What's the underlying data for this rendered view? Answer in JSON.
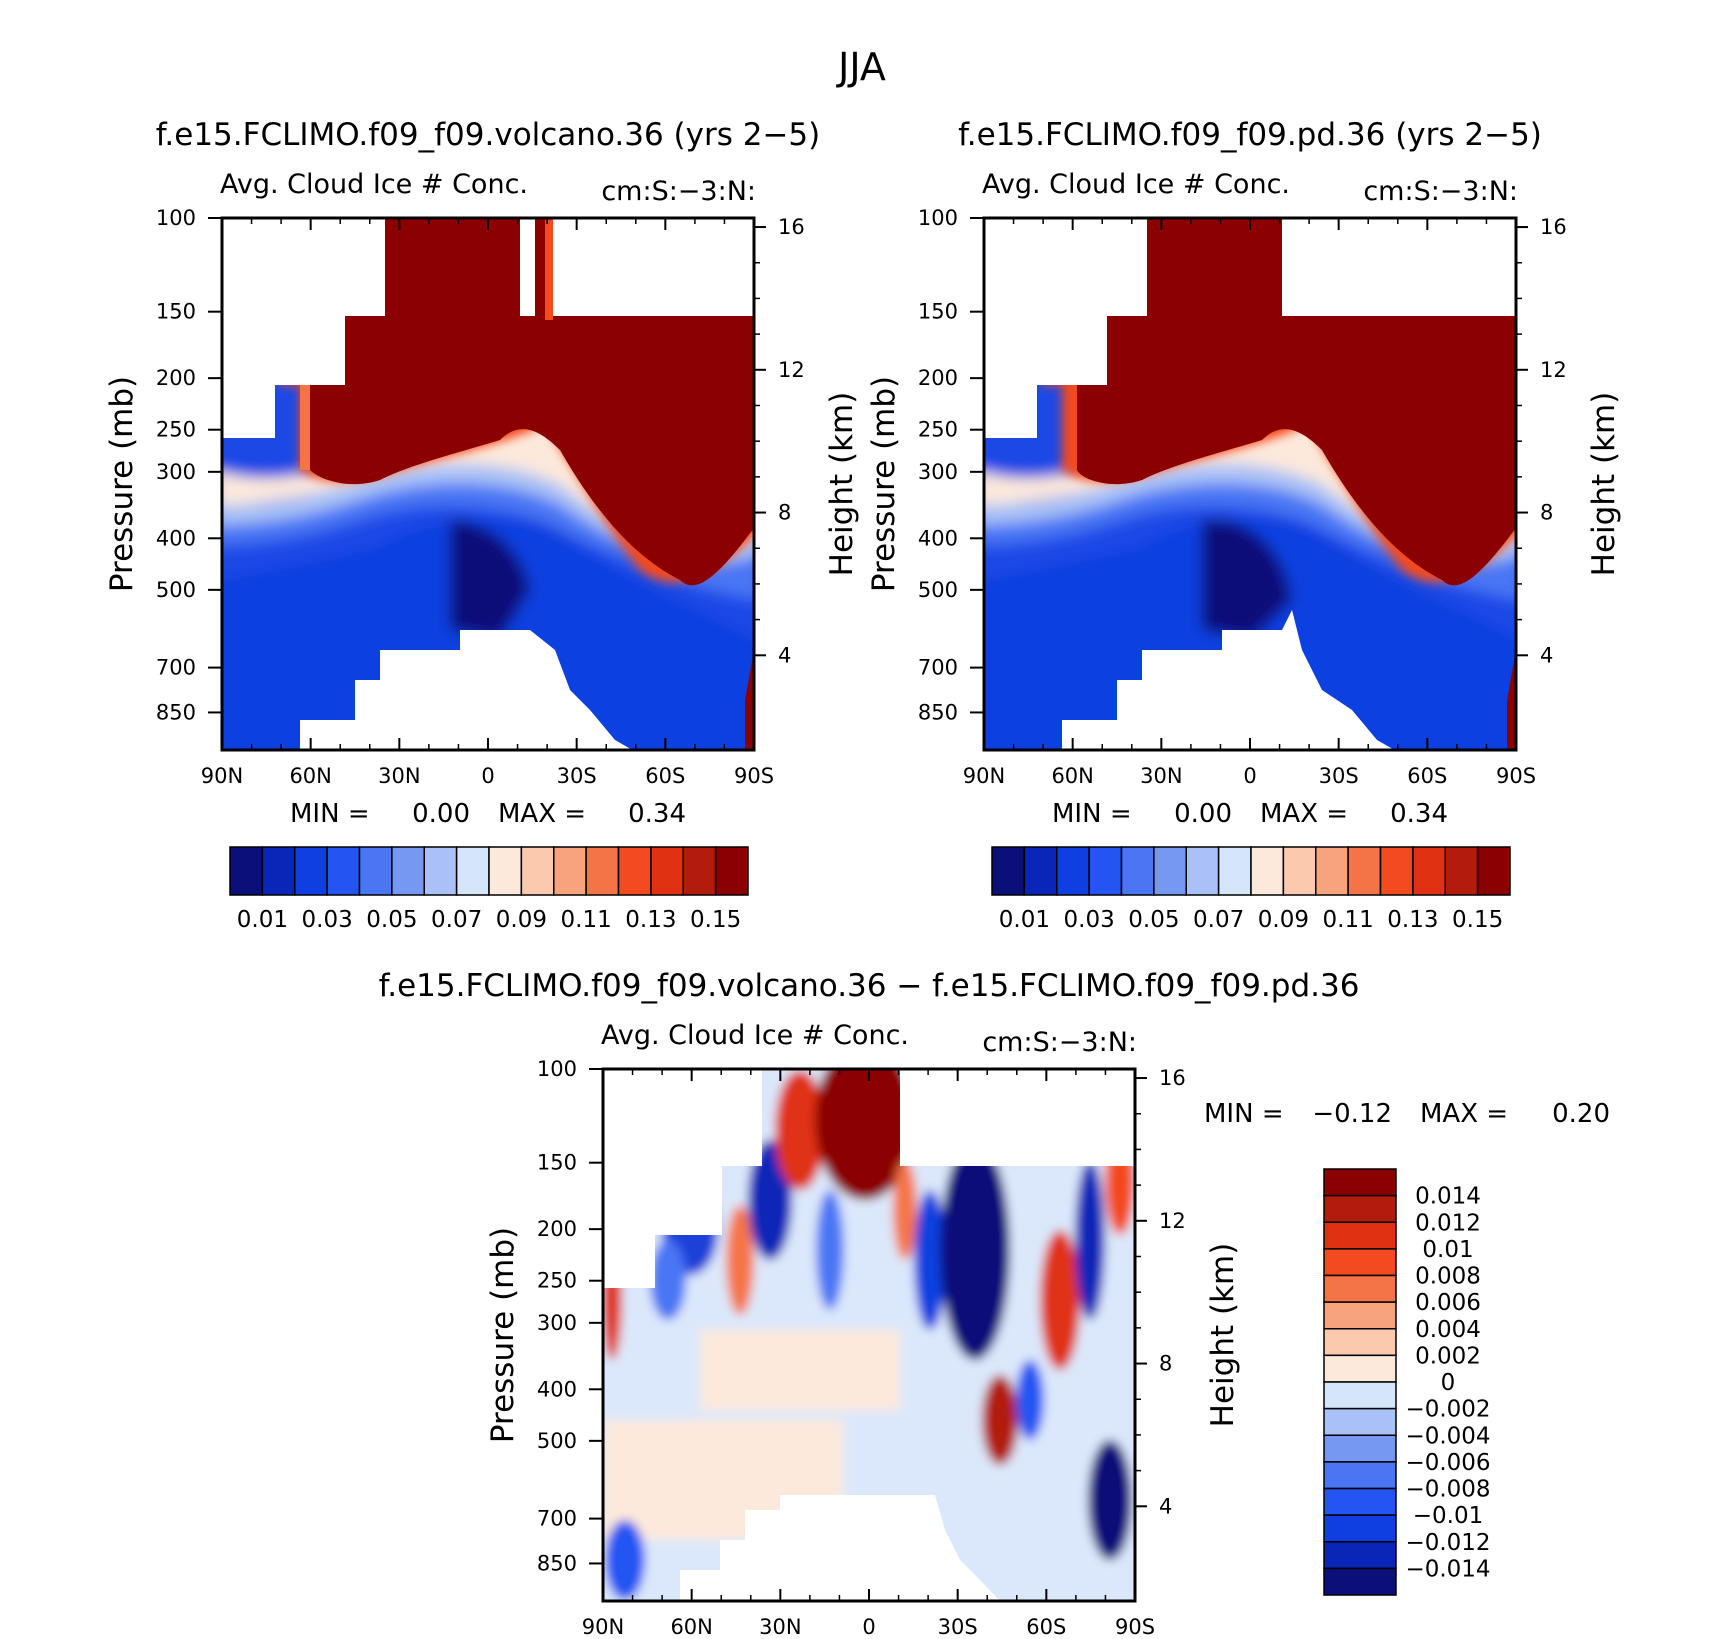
{
  "figure": {
    "title": "JJA"
  },
  "chart_data": [
    {
      "type": "heatmap",
      "title": "f.e15.FCLIMO.f09_f09.volcano.36 (yrs 2−5)",
      "subtitle_left": "Avg. Cloud Ice # Conc.",
      "subtitle_right": "cm:S:−3:N:",
      "ylabel": "Pressure (mb)",
      "ylabel_right": "Height (km)",
      "x_ticks": [
        "90N",
        "60N",
        "30N",
        "0",
        "30S",
        "60S",
        "90S"
      ],
      "x_ticks_values": [
        90,
        60,
        30,
        0,
        -30,
        -60,
        -90
      ],
      "y_ticks": [
        "100",
        "150",
        "200",
        "250",
        "300",
        "400",
        "500",
        "700",
        "850"
      ],
      "y_ticks_values": [
        100,
        150,
        200,
        250,
        300,
        400,
        500,
        700,
        850
      ],
      "y_scale": "log",
      "y_right_ticks": [
        "16",
        "12",
        "8",
        "4"
      ],
      "y_right_ticks_values": [
        16,
        12,
        8,
        4
      ],
      "min_label": "MIN =",
      "min_value": "0.00",
      "max_label": "MAX =",
      "max_value": "0.34",
      "colorbar": {
        "orientation": "horizontal",
        "colors": [
          "#0b0f7a",
          "#0a26b8",
          "#0f3fe0",
          "#2455f2",
          "#4a76f4",
          "#7698f2",
          "#a9c1f6",
          "#d6e6fa",
          "#fde9dc",
          "#fbc9ad",
          "#f7a37d",
          "#f57447",
          "#f44a1f",
          "#e03212",
          "#b21c0d",
          "#8b0000"
        ],
        "labels": [
          "0.01",
          "0.03",
          "0.05",
          "0.07",
          "0.09",
          "0.11",
          "0.13",
          "0.15"
        ]
      }
    },
    {
      "type": "heatmap",
      "title": "f.e15.FCLIMO.f09_f09.pd.36 (yrs 2−5)",
      "subtitle_left": "Avg. Cloud Ice # Conc.",
      "subtitle_right": "cm:S:−3:N:",
      "ylabel": "Pressure (mb)",
      "ylabel_right": "Height (km)",
      "x_ticks": [
        "90N",
        "60N",
        "30N",
        "0",
        "30S",
        "60S",
        "90S"
      ],
      "x_ticks_values": [
        90,
        60,
        30,
        0,
        -30,
        -60,
        -90
      ],
      "y_ticks": [
        "100",
        "150",
        "200",
        "250",
        "300",
        "400",
        "500",
        "700",
        "850"
      ],
      "y_ticks_values": [
        100,
        150,
        200,
        250,
        300,
        400,
        500,
        700,
        850
      ],
      "y_scale": "log",
      "y_right_ticks": [
        "16",
        "12",
        "8",
        "4"
      ],
      "y_right_ticks_values": [
        16,
        12,
        8,
        4
      ],
      "min_label": "MIN =",
      "min_value": "0.00",
      "max_label": "MAX =",
      "max_value": "0.34",
      "colorbar": {
        "orientation": "horizontal",
        "colors": [
          "#0b0f7a",
          "#0a26b8",
          "#0f3fe0",
          "#2455f2",
          "#4a76f4",
          "#7698f2",
          "#a9c1f6",
          "#d6e6fa",
          "#fde9dc",
          "#fbc9ad",
          "#f7a37d",
          "#f57447",
          "#f44a1f",
          "#e03212",
          "#b21c0d",
          "#8b0000"
        ],
        "labels": [
          "0.01",
          "0.03",
          "0.05",
          "0.07",
          "0.09",
          "0.11",
          "0.13",
          "0.15"
        ]
      }
    },
    {
      "type": "heatmap",
      "title": "f.e15.FCLIMO.f09_f09.volcano.36 − f.e15.FCLIMO.f09_f09.pd.36",
      "subtitle_left": "Avg. Cloud Ice # Conc.",
      "subtitle_right": "cm:S:−3:N:",
      "ylabel": "Pressure (mb)",
      "ylabel_right": "Height (km)",
      "x_ticks": [
        "90N",
        "60N",
        "30N",
        "0",
        "30S",
        "60S",
        "90S"
      ],
      "x_ticks_values": [
        90,
        60,
        30,
        0,
        -30,
        -60,
        -90
      ],
      "y_ticks": [
        "100",
        "150",
        "200",
        "250",
        "300",
        "400",
        "500",
        "700",
        "850"
      ],
      "y_ticks_values": [
        100,
        150,
        200,
        250,
        300,
        400,
        500,
        700,
        850
      ],
      "y_scale": "log",
      "y_right_ticks": [
        "16",
        "12",
        "8",
        "4"
      ],
      "y_right_ticks_values": [
        16,
        12,
        8,
        4
      ],
      "min_label": "MIN =",
      "min_value": "−0.12",
      "max_label": "MAX =",
      "max_value": "0.20",
      "colorbar": {
        "orientation": "vertical",
        "colors": [
          "#8b0000",
          "#b21c0d",
          "#e03212",
          "#f44a1f",
          "#f57447",
          "#f7a37d",
          "#fbc9ad",
          "#fde9dc",
          "#d6e6fa",
          "#a9c1f6",
          "#7698f2",
          "#4a76f4",
          "#2455f2",
          "#0f3fe0",
          "#0a26b8",
          "#0b0f7a"
        ],
        "labels": [
          "0.014",
          "0.012",
          "0.01",
          "0.008",
          "0.006",
          "0.004",
          "0.002",
          "0",
          "−0.002",
          "−0.004",
          "−0.006",
          "−0.008",
          "−0.01",
          "−0.012",
          "−0.014"
        ]
      }
    }
  ]
}
